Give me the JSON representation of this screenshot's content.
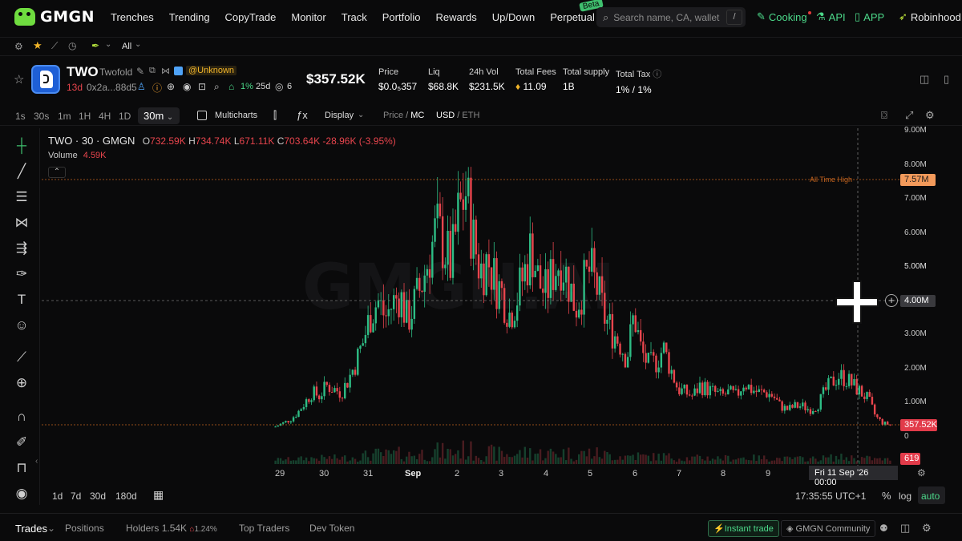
{
  "nav": {
    "brand": "GMGN",
    "links": [
      "Trenches",
      "Trending",
      "CopyTrade",
      "Monitor",
      "Track",
      "Portfolio",
      "Rewards",
      "Up/Down",
      "Perpetual"
    ],
    "beta": "Beta",
    "search_placeholder": "Search name, CA, wallet",
    "search_key": "/",
    "cooking": "Cooking",
    "api": "API",
    "app": "APP",
    "robinhood": "Robinhood"
  },
  "filter": {
    "all": "All"
  },
  "token": {
    "symbol": "TWO",
    "name": "Twofold",
    "tag": "@Unknown",
    "age": "13d",
    "address": "0x2a...88d5",
    "holders_pct": "1%",
    "holders_age": "25d",
    "views": "6",
    "price_mc": "$357.52K",
    "stats": [
      {
        "label": "Price",
        "value": "$0.0₅357"
      },
      {
        "label": "Liq",
        "value": "$68.8K"
      },
      {
        "label": "24h Vol",
        "value": "$231.5K"
      },
      {
        "label": "Total Fees",
        "value": "11.09"
      },
      {
        "label": "Total supply",
        "value": "1B"
      },
      {
        "label": "Total Tax",
        "value": "1% / 1%"
      }
    ]
  },
  "toolbar": {
    "intervals": [
      "1s",
      "30s",
      "1m",
      "1H",
      "4H",
      "1D"
    ],
    "active_interval": "30m",
    "multicharts": "Multicharts",
    "display": "Display",
    "price": "Price",
    "mc": "MC",
    "usd": "USD",
    "eth": "ETH"
  },
  "legend": {
    "title": "TWO · 30 · GMGN",
    "o_label": "O",
    "o": "732.59K",
    "h_label": "H",
    "h": "734.74K",
    "l_label": "L",
    "l": "671.11K",
    "c_label": "C",
    "c": "703.64K",
    "change": "-28.96K (-3.95%)",
    "volume_label": "Volume",
    "volume": "4.59K"
  },
  "chart_data": {
    "type": "candlestick",
    "watermark": "GMGN.AI",
    "y_ticks": [
      "9.00M",
      "8.00M",
      "7.00M",
      "6.00M",
      "5.00M",
      "4.00M",
      "3.00M",
      "2.00M",
      "1.00M",
      "0"
    ],
    "x_ticks": [
      "29",
      "30",
      "31",
      "Sep",
      "2",
      "3",
      "4",
      "5",
      "6",
      "7",
      "8",
      "9"
    ],
    "ath_label": "All Time High",
    "ath_value": "7.57M",
    "current": "357.52K",
    "crosshair_value": "4.00M",
    "volume_last": "619",
    "crosshair_date": "Fri 11 Sep '26",
    "crosshair_time": "00:00",
    "series": [
      0.3,
      0.4,
      0.5,
      0.7,
      1.0,
      1.3,
      1.2,
      1.5,
      1.4,
      1.3,
      1.7,
      2.2,
      2.8,
      3.6,
      4.0,
      3.5,
      3.9,
      4.2,
      3.4,
      3.9,
      4.5,
      5.3,
      6.1,
      5.6,
      5.0,
      6.5,
      7.2,
      5.8,
      4.9,
      5.2,
      4.6,
      4.2,
      3.6,
      4.1,
      4.8,
      5.6,
      4.5,
      4.2,
      4.9,
      5.2,
      4.6,
      3.8,
      4.4,
      4.9,
      4.3,
      3.5,
      3.1,
      2.8,
      2.3,
      3.6,
      2.5,
      2.1,
      2.2,
      2.6,
      2.0,
      1.4,
      1.3,
      1.2,
      1.5,
      1.4,
      1.3,
      1.2,
      1.3,
      1.2,
      1.6,
      1.4,
      1.3,
      1.3,
      1.2,
      0.9,
      0.8,
      0.9,
      0.9,
      0.8,
      0.9,
      1.3,
      1.6,
      1.8,
      1.7,
      1.5,
      1.3,
      1.1,
      0.6,
      0.4,
      0.36
    ]
  },
  "bottom": {
    "ranges": [
      "1d",
      "7d",
      "30d",
      "180d"
    ],
    "clock": "17:35:55 UTC+1",
    "pct": "%",
    "log": "log",
    "auto": "auto"
  },
  "tabs": {
    "trades": "Trades",
    "positions": "Positions",
    "holders": "Holders",
    "holders_count": "1.54K",
    "holders_pct": "1.24%",
    "top_traders": "Top Traders",
    "dev_token": "Dev Token",
    "instant": "Instant trade",
    "community": "GMGN Community"
  }
}
